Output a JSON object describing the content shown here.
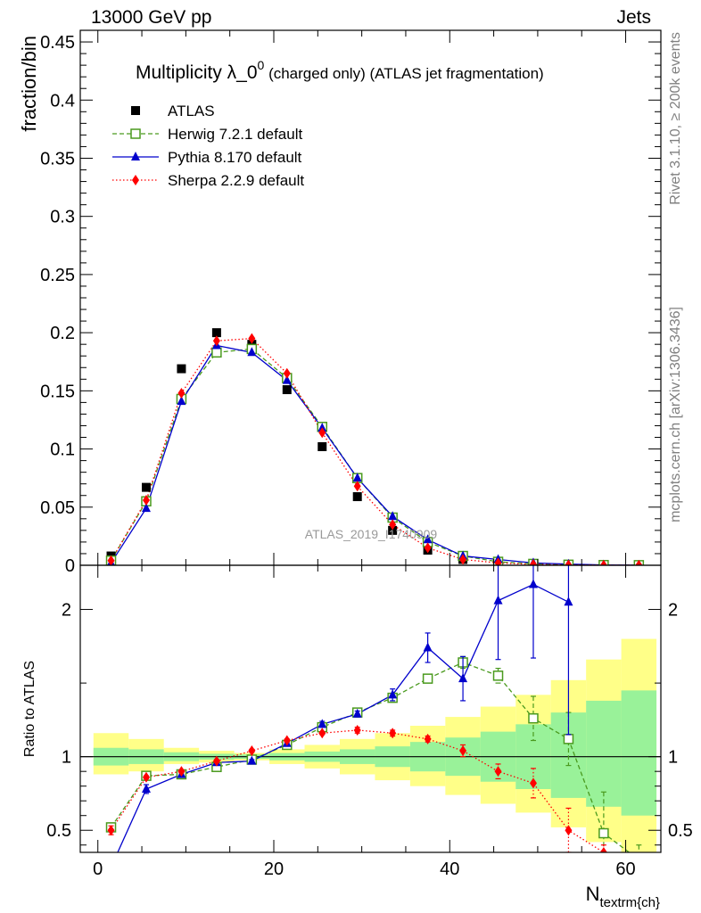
{
  "header": {
    "energy_label": "13000 GeV pp",
    "process_label": "Jets"
  },
  "side_labels": {
    "rivet": "Rivet 3.1.10, ≥ 200k events",
    "mcplots": "mcplots.cern.ch [arXiv:1306.3436]"
  },
  "chart_data": {
    "type": "line",
    "title": "Multiplicity λ_0^0 (charged only) (ATLAS jet fragmentation)",
    "title_main": "Multiplicity λ_0",
    "title_sup": "0",
    "title_tail": "(charged only) (ATLAS jet fragmentation)",
    "watermark": "ATLAS_2019_I1740909",
    "xlabel": "N_textrm{ch}",
    "xlabel_main": "N",
    "xlabel_sub": "textrm{ch}",
    "xlim": [
      -2,
      64
    ],
    "xticks": [
      0,
      20,
      40,
      60
    ],
    "main_panel": {
      "ylabel": "fraction/bin",
      "ylim": [
        0,
        0.46
      ],
      "yticks": [
        0,
        0.05,
        0.1,
        0.15,
        0.2,
        0.25,
        0.3,
        0.35,
        0.4,
        0.45
      ],
      "ytick_labels": [
        "0",
        "0.05",
        "0.1",
        "0.15",
        "0.2",
        "0.25",
        "0.3",
        "0.35",
        "0.4",
        "0.45"
      ],
      "legend_position": "top-left",
      "series": [
        {
          "name": "ATLAS",
          "color": "#000000",
          "marker": "square-filled",
          "line": "none",
          "x": [
            1.5,
            5.5,
            9.5,
            13.5,
            17.5,
            21.5,
            25.5,
            29.5,
            33.5,
            37.5,
            41.5,
            45.5,
            49.5,
            53.5,
            57.5,
            61.5
          ],
          "y": [
            0.008,
            0.067,
            0.169,
            0.2,
            0.19,
            0.151,
            0.102,
            0.059,
            0.03,
            0.013,
            0.005,
            0.0025,
            0.001,
            0.0005,
            0.0002,
            0.0001
          ]
        },
        {
          "name": "Herwig 7.2.1 default",
          "color": "#4a9a1e",
          "marker": "square-open",
          "line": "dashed",
          "x": [
            1.5,
            5.5,
            9.5,
            13.5,
            17.5,
            21.5,
            25.5,
            29.5,
            33.5,
            37.5,
            41.5,
            45.5,
            49.5,
            53.5,
            57.5,
            61.5
          ],
          "y": [
            0.004,
            0.055,
            0.143,
            0.183,
            0.186,
            0.161,
            0.119,
            0.075,
            0.041,
            0.02,
            0.008,
            0.003,
            0.0012,
            0.0005,
            0.0002,
            0.0001
          ]
        },
        {
          "name": "Pythia 8.170 default",
          "color": "#0000cc",
          "marker": "triangle-filled",
          "line": "solid",
          "x": [
            1.5,
            5.5,
            9.5,
            13.5,
            17.5,
            21.5,
            25.5,
            29.5,
            33.5,
            37.5,
            41.5,
            45.5,
            49.5,
            53.5,
            57.5,
            61.5
          ],
          "y": [
            0.002,
            0.049,
            0.141,
            0.189,
            0.183,
            0.159,
            0.118,
            0.075,
            0.042,
            0.022,
            0.008,
            0.005,
            0.002,
            0.001,
            0.0003,
            0.0001
          ]
        },
        {
          "name": "Sherpa 2.2.9 default",
          "color": "#ff0000",
          "marker": "diamond-filled",
          "line": "dotted",
          "x": [
            1.5,
            5.5,
            9.5,
            13.5,
            17.5,
            21.5,
            25.5,
            29.5,
            33.5,
            37.5,
            41.5,
            45.5,
            49.5,
            53.5,
            57.5,
            61.5
          ],
          "y": [
            0.004,
            0.056,
            0.148,
            0.193,
            0.195,
            0.165,
            0.114,
            0.068,
            0.035,
            0.015,
            0.005,
            0.002,
            0.0008,
            0.0003,
            0.0001,
            5e-05
          ]
        }
      ]
    },
    "ratio_panel": {
      "ylabel": "Ratio to ATLAS",
      "ylim": [
        0.35,
        2.3
      ],
      "yticks": [
        0.5,
        1,
        2
      ],
      "ytick_labels": [
        "0.5",
        "1",
        "2"
      ],
      "reference_line": 1,
      "bin_edges": [
        -0.5,
        3.5,
        7.5,
        11.5,
        15.5,
        19.5,
        23.5,
        27.5,
        31.5,
        35.5,
        39.5,
        43.5,
        47.5,
        51.5,
        55.5,
        59.5,
        63.5
      ],
      "band_inner": {
        "color": "#99f299",
        "lo": [
          0.94,
          0.95,
          0.97,
          0.98,
          0.985,
          0.975,
          0.965,
          0.95,
          0.93,
          0.9,
          0.87,
          0.83,
          0.78,
          0.72,
          0.66,
          0.6
        ],
        "hi": [
          1.06,
          1.05,
          1.03,
          1.02,
          1.015,
          1.025,
          1.035,
          1.05,
          1.07,
          1.1,
          1.13,
          1.17,
          1.22,
          1.3,
          1.38,
          1.45
        ]
      },
      "band_outer": {
        "color": "#ffff88",
        "lo": [
          0.88,
          0.9,
          0.95,
          0.96,
          0.975,
          0.95,
          0.92,
          0.88,
          0.84,
          0.8,
          0.74,
          0.68,
          0.62,
          0.52,
          0.42,
          0.3
        ],
        "hi": [
          1.16,
          1.12,
          1.06,
          1.04,
          1.025,
          1.05,
          1.08,
          1.12,
          1.16,
          1.21,
          1.27,
          1.34,
          1.42,
          1.52,
          1.66,
          1.8
        ]
      },
      "series": [
        {
          "name": "Herwig 7.2.1 default",
          "color": "#4a9a1e",
          "marker": "square-open",
          "line": "dashed",
          "x": [
            1.5,
            5.5,
            9.5,
            13.5,
            17.5,
            21.5,
            25.5,
            29.5,
            33.5,
            37.5,
            41.5,
            45.5,
            49.5,
            53.5,
            57.5,
            61.5
          ],
          "y": [
            0.52,
            0.87,
            0.88,
            0.93,
            0.98,
            1.08,
            1.2,
            1.3,
            1.4,
            1.53,
            1.64,
            1.55,
            1.26,
            1.12,
            0.48,
            0.3
          ],
          "err": [
            0.03,
            0.01,
            0.01,
            0.01,
            0.01,
            0.01,
            0.02,
            0.03,
            0.03,
            0.02,
            0.04,
            0.05,
            0.15,
            0.18,
            0.28,
            0.1
          ]
        },
        {
          "name": "Pythia 8.170 default",
          "color": "#0000cc",
          "marker": "triangle-filled",
          "line": "solid",
          "x": [
            1.5,
            5.5,
            9.5,
            13.5,
            17.5,
            21.5,
            25.5,
            29.5,
            33.5,
            37.5,
            41.5,
            45.5,
            49.5,
            53.5
          ],
          "y": [
            0.25,
            0.78,
            0.88,
            0.96,
            0.97,
            1.09,
            1.22,
            1.29,
            1.42,
            1.74,
            1.53,
            2.06,
            2.17,
            2.05
          ],
          "err": [
            0.05,
            0.03,
            0.01,
            0.01,
            0.01,
            0.01,
            0.02,
            0.02,
            0.04,
            0.1,
            0.15,
            0.4,
            0.5,
            0.9
          ]
        },
        {
          "name": "Sherpa 2.2.9 default",
          "color": "#ff0000",
          "marker": "diamond-filled",
          "line": "dotted",
          "x": [
            1.5,
            5.5,
            9.5,
            13.5,
            17.5,
            21.5,
            25.5,
            29.5,
            33.5,
            37.5,
            41.5,
            45.5,
            49.5,
            53.5,
            57.5
          ],
          "y": [
            0.5,
            0.86,
            0.9,
            0.97,
            1.04,
            1.11,
            1.16,
            1.18,
            1.16,
            1.12,
            1.04,
            0.9,
            0.82,
            0.5,
            0.35
          ],
          "err": [
            0.03,
            0.01,
            0.01,
            0.01,
            0.01,
            0.01,
            0.01,
            0.02,
            0.02,
            0.02,
            0.04,
            0.05,
            0.1,
            0.15,
            0.05
          ]
        }
      ]
    }
  }
}
